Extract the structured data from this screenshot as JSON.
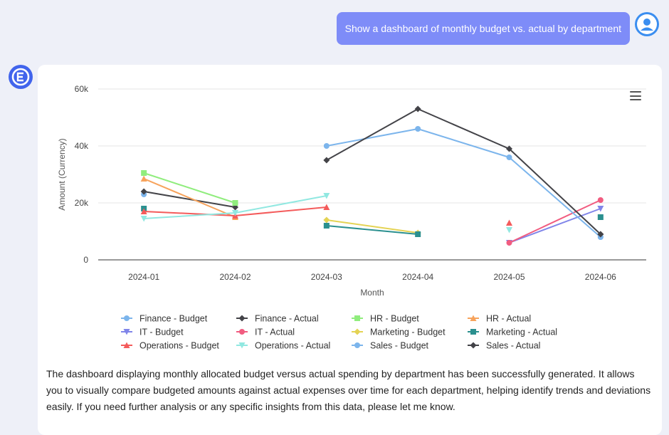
{
  "user_message": {
    "text": "Show a dashboard of monthly budget vs. actual by department"
  },
  "assistant": {
    "response": "The dashboard displaying monthly allocated budget versus actual spending by department has been successfully generated. It allows you to visually compare budgeted amounts against actual expenses over time for each department, helping identify trends and deviations easily. If you need further analysis or any specific insights from this data, please let me know."
  },
  "chart_data": {
    "type": "line",
    "title": "",
    "xlabel": "Month",
    "ylabel": "Amount (Currency)",
    "categories": [
      "2024-01",
      "2024-02",
      "2024-03",
      "2024-04",
      "2024-05",
      "2024-06"
    ],
    "ylim": [
      0,
      60000
    ],
    "yticks": [
      0,
      20000,
      40000,
      60000
    ],
    "ytick_labels": [
      "0",
      "20k",
      "40k",
      "60k"
    ],
    "grid": true,
    "legend_position": "bottom",
    "series": [
      {
        "name": "Finance - Budget",
        "color": "#7cb5ec",
        "marker": "circle",
        "values": [
          23000,
          null,
          null,
          null,
          null,
          8000
        ]
      },
      {
        "name": "Finance - Actual",
        "color": "#434348",
        "marker": "diamond",
        "values": [
          24000,
          18500,
          null,
          null,
          null,
          9000
        ]
      },
      {
        "name": "HR - Budget",
        "color": "#90ed7d",
        "marker": "square",
        "values": [
          30500,
          20000,
          null,
          null,
          null,
          null
        ]
      },
      {
        "name": "HR - Actual",
        "color": "#f7a35c",
        "marker": "triangle",
        "values": [
          28500,
          15000,
          null,
          null,
          null,
          null
        ]
      },
      {
        "name": "IT - Budget",
        "color": "#8085e9",
        "marker": "triangle-down",
        "values": [
          null,
          null,
          null,
          null,
          6000,
          18000
        ]
      },
      {
        "name": "IT - Actual",
        "color": "#f15c80",
        "marker": "circle",
        "values": [
          null,
          null,
          null,
          null,
          6000,
          21000
        ]
      },
      {
        "name": "Marketing - Budget",
        "color": "#e4d354",
        "marker": "diamond",
        "values": [
          null,
          null,
          14000,
          9500,
          null,
          null
        ]
      },
      {
        "name": "Marketing - Actual",
        "color": "#2b908f",
        "marker": "square",
        "values": [
          18000,
          null,
          12000,
          9000,
          null,
          15000
        ]
      },
      {
        "name": "Operations - Budget",
        "color": "#f45b5b",
        "marker": "triangle",
        "values": [
          17000,
          15500,
          18500,
          null,
          13000,
          null
        ]
      },
      {
        "name": "Operations - Actual",
        "color": "#91e8e1",
        "marker": "triangle-down",
        "values": [
          14500,
          16500,
          22500,
          null,
          10500,
          null
        ]
      },
      {
        "name": "Sales - Budget",
        "color": "#7cb5ec",
        "marker": "circle",
        "values": [
          null,
          null,
          40000,
          46000,
          36000,
          8000
        ]
      },
      {
        "name": "Sales - Actual",
        "color": "#434348",
        "marker": "diamond",
        "values": [
          null,
          null,
          35000,
          53000,
          39000,
          9000
        ]
      }
    ]
  }
}
